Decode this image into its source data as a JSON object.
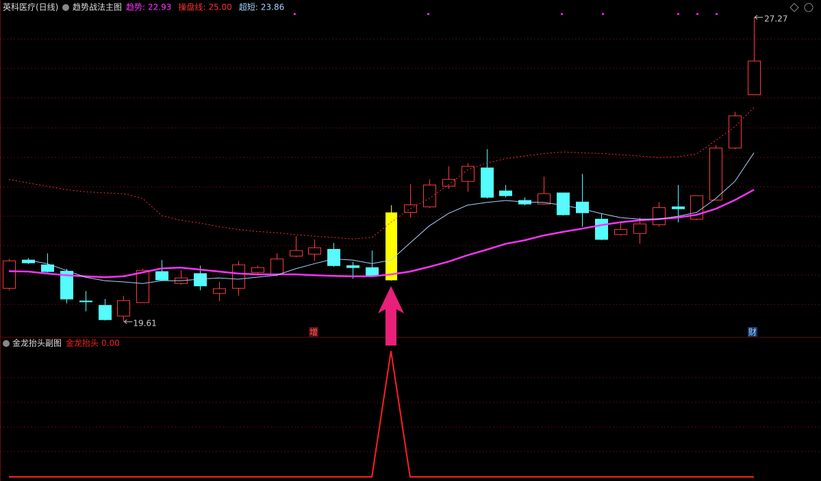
{
  "chart_data": [
    {
      "type": "candlestick",
      "title": "英科医疗(日线)",
      "subtitle": "趋势战法主图",
      "candles": {
        "open": [
          20.45,
          21.16,
          21.04,
          20.88,
          20.13,
          20.02,
          19.75,
          20.09,
          20.87,
          20.57,
          20.82,
          20.32,
          20.45,
          20.85,
          20.8,
          21.26,
          21.31,
          21.43,
          21.02,
          20.97,
          20.66,
          22.36,
          22.5,
          23.02,
          23.14,
          23.48,
          22.9,
          22.66,
          22.57,
          22.85,
          22.62,
          22.19,
          21.8,
          21.83,
          22.05,
          22.5,
          22.19,
          22.67,
          23.98,
          25.32
        ],
        "high": [
          21.19,
          21.21,
          21.33,
          20.94,
          20.38,
          20.18,
          20.26,
          20.94,
          21.16,
          20.9,
          21.02,
          20.61,
          21.14,
          21.02,
          21.33,
          21.76,
          21.68,
          21.59,
          21.11,
          21.4,
          22.54,
          23.07,
          23.19,
          23.52,
          23.6,
          23.95,
          23.05,
          22.74,
          23.26,
          22.85,
          23.33,
          22.33,
          22.11,
          22.23,
          22.62,
          23.05,
          22.79,
          24.05,
          24.89,
          27.27
        ],
        "low": [
          20.4,
          21.06,
          20.85,
          20.07,
          19.87,
          19.64,
          19.61,
          20.09,
          20.64,
          20.54,
          20.4,
          20.13,
          20.26,
          20.82,
          20.75,
          21.23,
          21.14,
          20.99,
          20.69,
          20.75,
          20.64,
          22.23,
          22.47,
          22.95,
          22.88,
          22.71,
          22.74,
          22.54,
          22.55,
          22.28,
          22.0,
          21.66,
          21.78,
          21.57,
          22.0,
          22.11,
          22.17,
          22.66,
          23.95,
          25.32
        ],
        "close": [
          21.14,
          21.09,
          20.87,
          20.18,
          20.11,
          19.66,
          20.14,
          20.9,
          20.66,
          20.71,
          20.51,
          20.44,
          21.04,
          20.97,
          21.19,
          21.4,
          21.47,
          21.02,
          20.97,
          20.76,
          22.35,
          22.55,
          23.05,
          23.19,
          23.52,
          22.74,
          22.78,
          22.57,
          22.83,
          22.3,
          22.35,
          21.68,
          21.93,
          22.07,
          22.48,
          22.45,
          22.78,
          23.98,
          24.79,
          26.17
        ]
      },
      "up_color": "#ff3c3c",
      "down_color": "#54fcfc",
      "highlight": 20,
      "highlight_color": "#ffff00",
      "series": [
        {
          "name": "趋势:",
          "color": "#ff33ff",
          "values": [
            20.88,
            20.87,
            20.82,
            20.78,
            20.75,
            20.73,
            20.75,
            20.85,
            20.95,
            20.97,
            20.92,
            20.87,
            20.82,
            20.8,
            20.8,
            20.8,
            20.78,
            20.76,
            20.75,
            20.75,
            20.8,
            20.87,
            20.99,
            21.12,
            21.28,
            21.42,
            21.57,
            21.66,
            21.78,
            21.87,
            21.95,
            22.04,
            22.11,
            22.16,
            22.19,
            22.23,
            22.3,
            22.45,
            22.67,
            22.93
          ]
        },
        {
          "name": "操盘线:",
          "color": "#ff3030",
          "dashed": true,
          "values": [
            23.19,
            23.1,
            23.02,
            22.93,
            22.88,
            22.85,
            22.83,
            22.71,
            22.28,
            22.16,
            22.09,
            22.0,
            21.93,
            21.88,
            21.85,
            21.8,
            21.76,
            21.73,
            21.69,
            21.73,
            22.11,
            22.45,
            22.71,
            23.05,
            23.43,
            23.6,
            23.71,
            23.78,
            23.84,
            23.88,
            23.86,
            23.84,
            23.81,
            23.78,
            23.74,
            23.76,
            23.83,
            24.17,
            24.52,
            25
          ],
          "value_labels": [
            null,
            null,
            null,
            null,
            null,
            null,
            null,
            null,
            null,
            null,
            null,
            null,
            null,
            null,
            null,
            null,
            null,
            null,
            null,
            null,
            null,
            null,
            null,
            null,
            null,
            null,
            null,
            null,
            null,
            null,
            null,
            null,
            null,
            null,
            null,
            null,
            null,
            null,
            null,
            "25.00"
          ]
        },
        {
          "name": "超短:",
          "color": "#a8d4ff",
          "values": [
            null,
            21.16,
            21.07,
            20.9,
            20.73,
            20.64,
            20.61,
            20.57,
            20.64,
            20.64,
            20.68,
            20.71,
            20.68,
            20.73,
            20.78,
            20.94,
            21.07,
            21.19,
            21.16,
            21.07,
            21.16,
            21.59,
            22.02,
            22.33,
            22.54,
            22.61,
            22.66,
            22.62,
            22.61,
            22.54,
            22.45,
            22.33,
            22.23,
            22.19,
            22.19,
            22.26,
            22.36,
            22.71,
            23.14,
            23.86
          ]
        }
      ],
      "annotations": [
        "增",
        "财"
      ],
      "ylim": [
        19.44,
        27.36
      ]
    },
    {
      "type": "line",
      "title": "金龙抬头副图",
      "series": [
        {
          "name": "金龙抬头",
          "color": "#ff2020",
          "values": [
            0,
            0,
            0,
            0,
            0,
            0,
            0,
            0,
            0,
            0,
            0,
            0,
            0,
            0,
            0,
            0,
            0,
            0,
            0,
            0,
            1,
            0,
            0,
            0,
            0,
            0,
            0,
            0,
            0,
            0,
            0,
            0,
            0,
            0,
            0,
            0,
            0,
            0,
            0,
            0
          ],
          "value_labels": [
            "0.00",
            "0.00",
            "0.00",
            "0.00",
            "0.00",
            "0.00",
            "0.00",
            "0.00",
            "0.00",
            "0.00",
            "0.00",
            "0.00",
            "0.00",
            "0.00",
            "0.00",
            "0.00",
            "0.00",
            "0.00",
            "0.00",
            "0.00",
            "1.00",
            "0.00",
            "0.00",
            "0.00",
            "0.00",
            "0.00",
            "0.00",
            "0.00",
            "0.00",
            "0.00",
            "0.00",
            "0.00",
            "0.00",
            "0.00",
            "0.00",
            "0.00",
            "0.00",
            "0.00",
            "0.00",
            "0.00"
          ]
        }
      ],
      "ylim": [
        0,
        1
      ]
    }
  ]
}
